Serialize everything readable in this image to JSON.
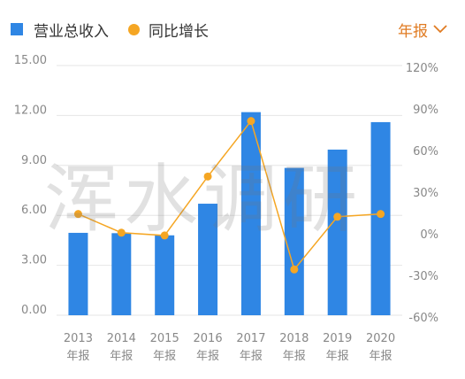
{
  "legend": {
    "bar_label": "营业总收入",
    "line_label": "同比增长"
  },
  "period_selector": {
    "label": "年报",
    "icon": "chevron-down-icon"
  },
  "watermark": "浑水调研",
  "colors": {
    "bar": "#2f86e4",
    "line": "#f5a623",
    "accent": "#e07b22",
    "grid": "#e6e6e6",
    "axis_text": "#888888"
  },
  "chart_data": {
    "type": "bar",
    "categories": [
      "2013",
      "2014",
      "2015",
      "2016",
      "2017",
      "2018",
      "2019",
      "2020"
    ],
    "category_sublabel": "年报",
    "series": [
      {
        "name": "营业总收入",
        "type": "bar",
        "axis": "left",
        "values": [
          4.95,
          4.93,
          4.8,
          6.7,
          12.2,
          8.85,
          9.95,
          11.6
        ]
      },
      {
        "name": "同比增长",
        "type": "line",
        "axis": "right",
        "values": [
          0.13,
          -0.005,
          -0.025,
          0.4,
          0.8,
          -0.27,
          0.11,
          0.13
        ]
      }
    ],
    "y_left": {
      "ticks": [
        "0.00",
        "3.00",
        "6.00",
        "9.00",
        "12.00",
        "15.00"
      ],
      "ylim": [
        0,
        15
      ]
    },
    "y_right": {
      "ticks": [
        "-60%",
        "-30%",
        "0%",
        "30%",
        "60%",
        "90%",
        "120%"
      ],
      "ylim": [
        -0.6,
        1.2
      ]
    },
    "grid": true,
    "legend_position": "top-left"
  }
}
